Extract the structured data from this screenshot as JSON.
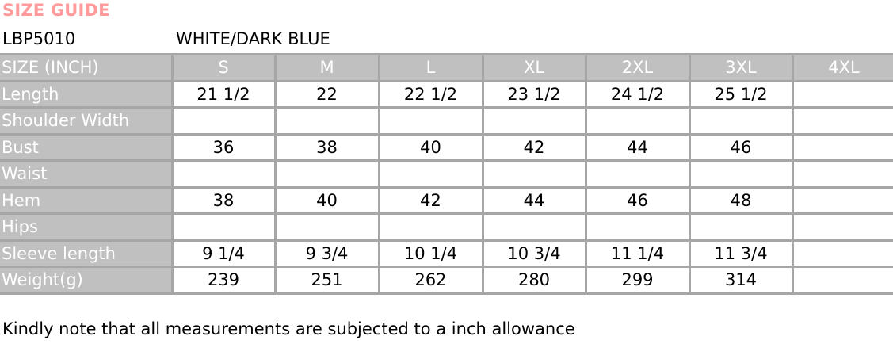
{
  "title": "SIZE GUIDE",
  "product_code": "LBP5010",
  "product_color": "WHITE/DARK BLUE",
  "table": {
    "header": [
      "SIZE (INCH)",
      "S",
      "M",
      "L",
      "XL",
      "2XL",
      "3XL",
      "4XL"
    ],
    "rows": [
      {
        "label": "Length",
        "values": [
          "21 1/2",
          "22",
          "22 1/2",
          "23 1/2",
          "24 1/2",
          "25 1/2",
          ""
        ]
      },
      {
        "label": "Shoulder Width",
        "values": [
          "",
          "",
          "",
          "",
          "",
          "",
          ""
        ]
      },
      {
        "label": "Bust",
        "values": [
          "36",
          "38",
          "40",
          "42",
          "44",
          "46",
          ""
        ]
      },
      {
        "label": "Waist",
        "values": [
          "",
          "",
          "",
          "",
          "",
          "",
          ""
        ]
      },
      {
        "label": "Hem",
        "values": [
          "38",
          "40",
          "42",
          "44",
          "46",
          "48",
          ""
        ]
      },
      {
        "label": "Hips",
        "values": [
          "",
          "",
          "",
          "",
          "",
          "",
          ""
        ]
      },
      {
        "label": "Sleeve length",
        "values": [
          "9 1/4",
          "9 3/4",
          "10 1/4",
          "10 3/4",
          "11 1/4",
          "11 3/4",
          ""
        ]
      },
      {
        "label": "Weight(g)",
        "values": [
          "239",
          "251",
          "262",
          "280",
          "299",
          "314",
          ""
        ]
      }
    ]
  },
  "note": "Kindly note that all measurements are subjected to a inch allowance",
  "colors": {
    "title": "#ff9b9b",
    "header_bg": "#c0c0c0",
    "border": "#a6a6a6"
  }
}
